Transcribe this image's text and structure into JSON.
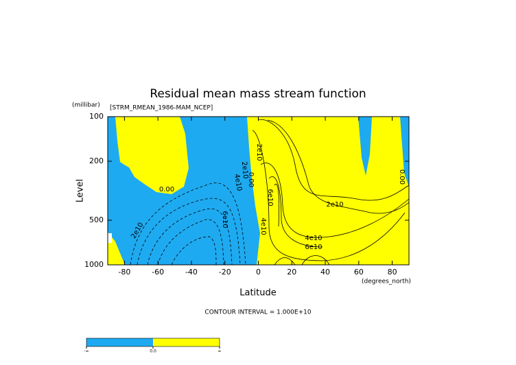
{
  "chart_data": {
    "type": "contour",
    "title": "Residual mean mass stream function",
    "subtitle": "[STRM_RMEAN_1986-MAM_NCEP]",
    "y_unit": "(millibar)",
    "x_unit": "(degrees_north)",
    "xlabel": "Latitude",
    "ylabel": "Level",
    "xlim": [
      -90,
      90
    ],
    "xticks": [
      -80,
      -60,
      -40,
      -20,
      0,
      20,
      40,
      60,
      80
    ],
    "ylim": [
      1000,
      100
    ],
    "yticks": [
      100,
      200,
      500,
      1000
    ],
    "ylog": true,
    "contour_interval": "CONTOUR INTERVAL = 1.000E+10",
    "contour_labels": [
      "0.00",
      "2e10",
      "4e10",
      "2e10",
      "0.00",
      "6e10",
      "2e10",
      "6e10",
      "4e10",
      "2e10",
      "4e10",
      "6e10",
      "0.00"
    ],
    "colorbar": {
      "colors": [
        "#1eaaf0",
        "#ffff00"
      ],
      "labels": [
        "-∞",
        "0.0",
        "∞"
      ]
    }
  }
}
